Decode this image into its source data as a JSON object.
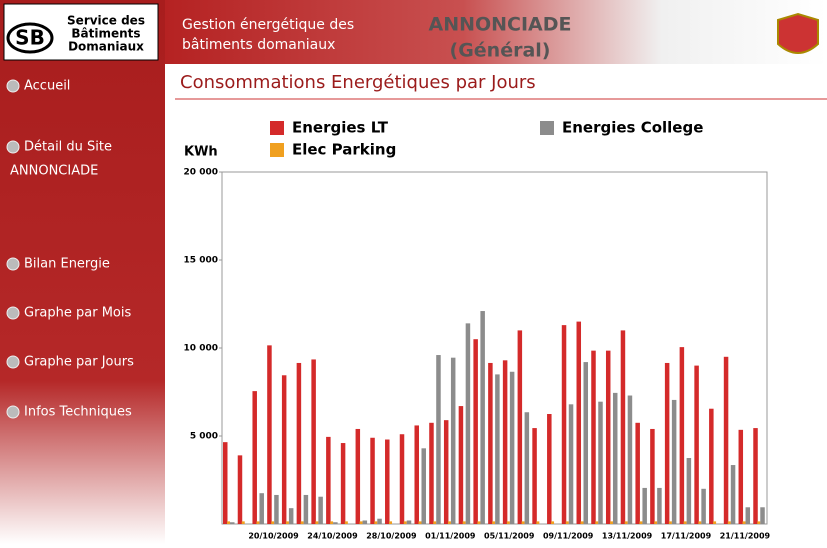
{
  "header": {
    "logo_initials": "SB",
    "logo_lines": [
      "Service des",
      "Bâtiments",
      "Domaniaux"
    ],
    "title_lines": [
      "Gestion énergétique des",
      "bâtiments domaniaux"
    ],
    "site": "ANNONCIADE",
    "scope": "(Général)"
  },
  "nav": [
    "Accueil",
    "Détail du Site",
    "ANNONCIADE",
    "Bilan Energie",
    "Graphe par Mois",
    "Graphe par Jours",
    "Infos Techniques"
  ],
  "chart_data": {
    "type": "bar",
    "title": "Consommations Energétiques par Jours",
    "ylabel": "KWh",
    "categories": [
      null,
      null,
      null,
      "20/10/2009",
      null,
      null,
      null,
      "24/10/2009",
      null,
      null,
      null,
      "28/10/2009",
      null,
      null,
      null,
      "01/11/2009",
      null,
      null,
      null,
      "05/11/2009",
      null,
      null,
      null,
      "09/11/2009",
      null,
      null,
      null,
      "13/11/2009",
      null,
      null,
      null,
      "17/11/2009",
      null,
      null,
      null,
      "21/11/2009",
      null
    ],
    "series": [
      {
        "name": "Energies LT",
        "color": "#d42a2a",
        "values": [
          4650,
          3900,
          7550,
          10150,
          8450,
          9150,
          9350,
          4950,
          4600,
          5400,
          4900,
          4800,
          5100,
          5600,
          5750,
          5900,
          6700,
          10500,
          9150,
          9300,
          11000,
          5450,
          6250,
          11300,
          11500,
          9850,
          9850,
          11000,
          5750,
          5400,
          9150,
          10050,
          9000,
          6550,
          9500,
          5350,
          5450
        ]
      },
      {
        "name": "Elec Parking",
        "color": "#f0a020",
        "values": [
          150,
          150,
          150,
          150,
          150,
          150,
          150,
          150,
          150,
          150,
          150,
          150,
          150,
          150,
          150,
          150,
          150,
          150,
          150,
          150,
          150,
          150,
          150,
          150,
          150,
          150,
          150,
          150,
          150,
          150,
          150,
          150,
          150,
          150,
          150,
          150,
          150
        ]
      },
      {
        "name": "Energies College",
        "color": "#8c8c8c",
        "values": [
          100,
          0,
          1750,
          1650,
          900,
          1650,
          1550,
          100,
          0,
          200,
          300,
          0,
          200,
          4300,
          9600,
          9450,
          11400,
          12100,
          8500,
          8650,
          6350,
          0,
          0,
          6800,
          9200,
          6950,
          7450,
          7300,
          2050,
          2050,
          7050,
          3750,
          2000,
          0,
          3350,
          950,
          950
        ]
      }
    ],
    "ylim": [
      0,
      20000
    ],
    "yticks": [
      {
        "value": 5000,
        "label": "5 000"
      },
      {
        "value": 10000,
        "label": "10 000"
      },
      {
        "value": 15000,
        "label": "15 000"
      },
      {
        "value": 20000,
        "label": "20 000"
      }
    ]
  }
}
